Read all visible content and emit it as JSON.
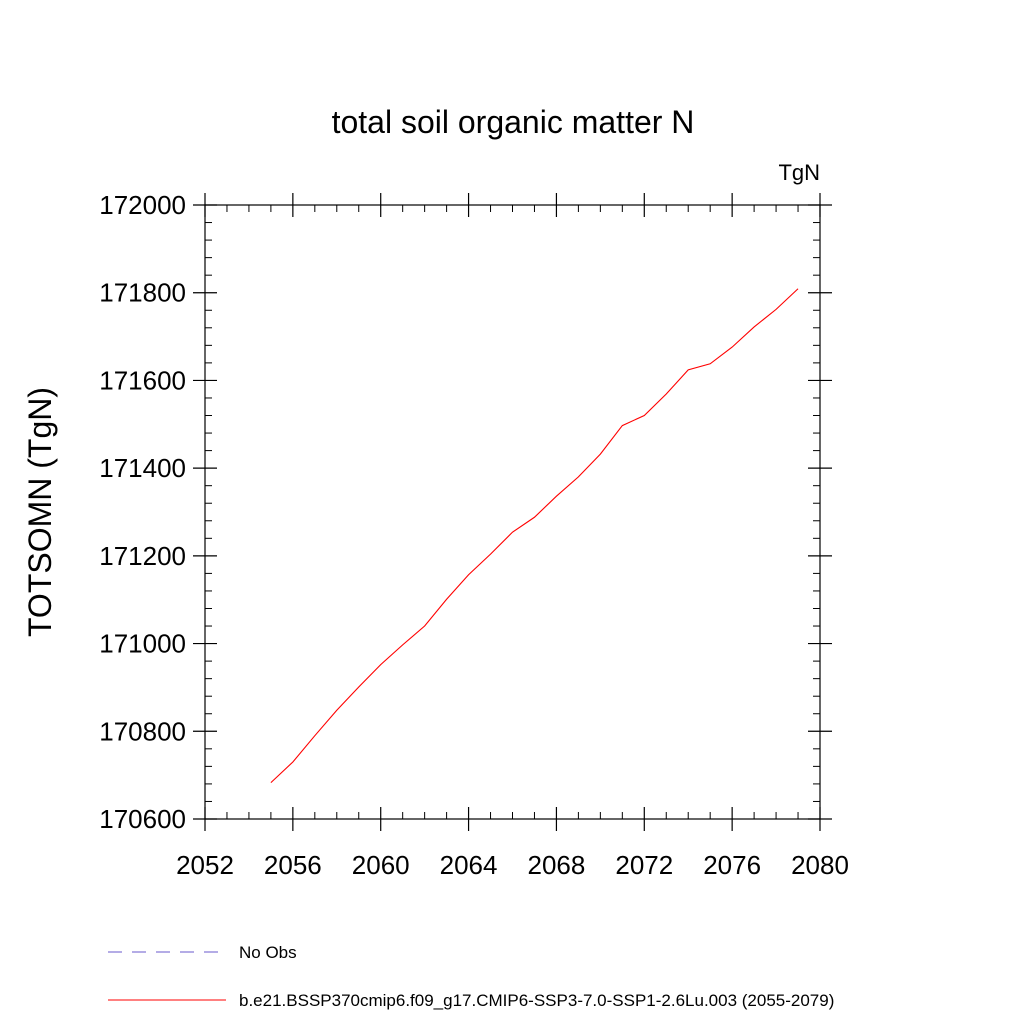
{
  "chart_data": {
    "type": "line",
    "title": "total soil organic matter N",
    "units": "TgN",
    "ylabel": "TOTSOMN  (TgN)",
    "xlabel": "",
    "xlim": [
      2052,
      2080
    ],
    "ylim": [
      170600,
      172000
    ],
    "x_ticks": [
      2052,
      2056,
      2060,
      2064,
      2068,
      2072,
      2076,
      2080
    ],
    "y_ticks": [
      170600,
      170800,
      171000,
      171200,
      171400,
      171600,
      171800,
      172000
    ],
    "x_minor_step": 1,
    "y_minor_step": 40,
    "grid": false,
    "legend_position": "bottom-left",
    "series": [
      {
        "name": "No Obs",
        "color": "#6a5acd",
        "dash": true,
        "x": [],
        "y": []
      },
      {
        "name": "b.e21.BSSP370cmip6.f09_g17.CMIP6-SSP3-7.0-SSP1-2.6Lu.003 (2055-2079)",
        "color": "#ff0000",
        "dash": false,
        "x": [
          2055,
          2056,
          2057,
          2058,
          2059,
          2060,
          2061,
          2062,
          2063,
          2064,
          2065,
          2066,
          2067,
          2068,
          2069,
          2070,
          2071,
          2072,
          2073,
          2074,
          2075,
          2076,
          2077,
          2078,
          2079
        ],
        "y": [
          170683,
          170730,
          170790,
          170848,
          170901,
          170952,
          170997,
          171040,
          171101,
          171157,
          171204,
          171254,
          171288,
          171336,
          171380,
          171432,
          171497,
          171520,
          171569,
          171624,
          171638,
          171676,
          171722,
          171762,
          171809
        ]
      }
    ]
  }
}
